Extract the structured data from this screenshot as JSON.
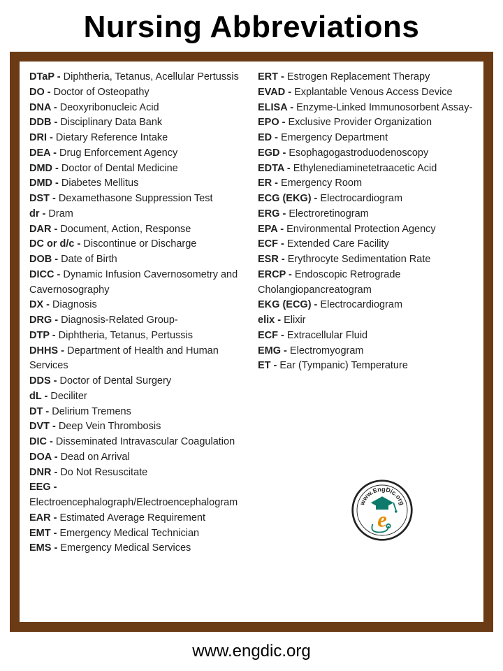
{
  "title": "Nursing Abbreviations",
  "footer": "www.engdic.org",
  "logo_label": "EngDic.org",
  "colors": {
    "frame": "#6b3b16",
    "background": "#ffffff",
    "text": "#222222",
    "logo_teal": "#0d7a6b",
    "logo_orange": "#e68a00"
  },
  "left": [
    {
      "abbr": "DTaP",
      "def": "Diphtheria, Tetanus, Acellular Pertussis"
    },
    {
      "abbr": "DO",
      "def": "Doctor of Osteopathy"
    },
    {
      "abbr": "DNA",
      "def": "Deoxyribonucleic Acid"
    },
    {
      "abbr": "DDB",
      "def": "Disciplinary Data Bank"
    },
    {
      "abbr": "DRI",
      "def": "Dietary Reference Intake"
    },
    {
      "abbr": "DEA",
      "def": "Drug Enforcement Agency"
    },
    {
      "abbr": "DMD",
      "def": "Doctor of Dental Medicine"
    },
    {
      "abbr": "DMD",
      "def": "Diabetes Mellitus"
    },
    {
      "abbr": "DST",
      "def": "Dexamethasone Suppression Test"
    },
    {
      "abbr": "dr",
      "def": " Dram"
    },
    {
      "abbr": "DAR",
      "def": "Document, Action, Response"
    },
    {
      "abbr": "DC or d/c",
      "def": "Discontinue or Discharge"
    },
    {
      "abbr": "DOB",
      "def": "Date of Birth"
    },
    {
      "abbr": "DICC",
      "def": "Dynamic Infusion Cavernosometry and Cavernosography"
    },
    {
      "abbr": "DX",
      "def": "Diagnosis"
    },
    {
      "abbr": "DRG",
      "def": "Diagnosis-Related Group-"
    },
    {
      "abbr": "DTP",
      "def": "Diphtheria, Tetanus, Pertussis"
    },
    {
      "abbr": "DHHS",
      "def": "Department of Health and Human Services"
    },
    {
      "abbr": "DDS",
      "def": "Doctor of Dental Surgery"
    },
    {
      "abbr": "dL",
      "def": "Deciliter"
    },
    {
      "abbr": "DT",
      "def": "Delirium Tremens"
    },
    {
      "abbr": "DVT",
      "def": "Deep Vein Thrombosis"
    },
    {
      "abbr": "DIC",
      "def": "Disseminated Intravascular Coagulation"
    },
    {
      "abbr": "DOA",
      "def": "Dead on Arrival"
    },
    {
      "abbr": "DNR",
      "def": "Do Not Resuscitate"
    },
    {
      "abbr": "EEG",
      "def": "Electroencephalograph/Electroencephalogram"
    },
    {
      "abbr": "EAR",
      "def": "Estimated Average Requirement"
    },
    {
      "abbr": "EMT",
      "def": "Emergency Medical Technician"
    },
    {
      "abbr": "EMS",
      "def": "Emergency Medical Services"
    }
  ],
  "right": [
    {
      "abbr": "ERT",
      "def": "Estrogen Replacement Therapy"
    },
    {
      "abbr": "EVAD",
      "def": "Explantable Venous Access Device"
    },
    {
      "abbr": "ELISA",
      "def": "Enzyme-Linked Immunosorbent Assay-"
    },
    {
      "abbr": "EPO",
      "def": "Exclusive Provider Organization"
    },
    {
      "abbr": "ED",
      "def": "Emergency Department"
    },
    {
      "abbr": "EGD",
      "def": "Esophagogastroduodenoscopy"
    },
    {
      "abbr": "EDTA",
      "def": "Ethylenediaminetetraacetic Acid"
    },
    {
      "abbr": "ER",
      "def": "Emergency Room"
    },
    {
      "abbr": "ECG (EKG)",
      "def": " Electrocardiogram"
    },
    {
      "abbr": "ERG",
      "def": "Electroretinogram"
    },
    {
      "abbr": "EPA",
      "def": "Environmental Protection Agency"
    },
    {
      "abbr": "ECF",
      "def": "Extended Care Facility"
    },
    {
      "abbr": "ESR",
      "def": "Erythrocyte Sedimentation Rate"
    },
    {
      "abbr": "ERCP",
      "def": "Endoscopic Retrograde Cholangiopancreatogram"
    },
    {
      "abbr": "EKG (ECG)",
      "def": " Electrocardiogram"
    },
    {
      "abbr": "elix",
      "def": "Elixir"
    },
    {
      "abbr": "ECF",
      "def": "Extracellular Fluid"
    },
    {
      "abbr": "EMG",
      "def": " Electromyogram"
    },
    {
      "abbr": "ET",
      "def": " Ear (Tympanic) Temperature"
    }
  ]
}
